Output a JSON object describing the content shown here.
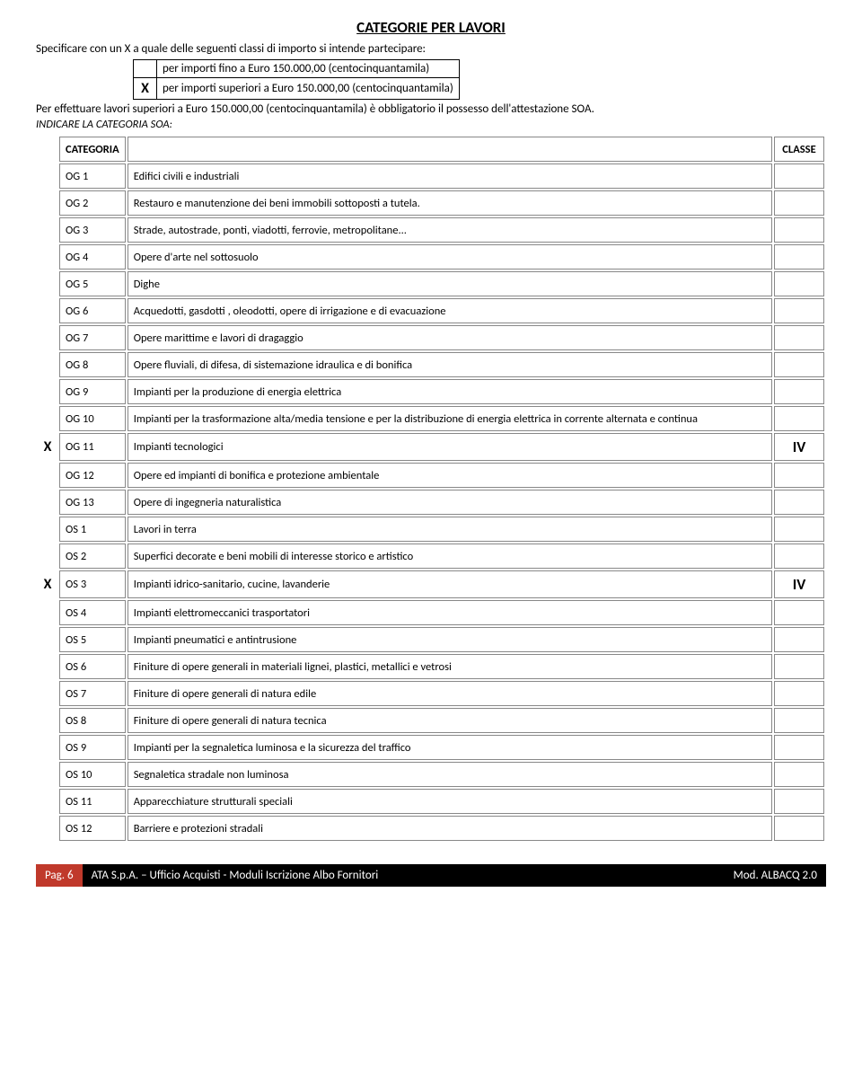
{
  "title": "CATEGORIE PER LAVORI",
  "intro": "Specificare con un X a quale delle seguenti classi di importo si intende partecipare:",
  "imports": [
    {
      "mark": "",
      "label": "per importi fino a Euro 150.000,00 (centocinquantamila)"
    },
    {
      "mark": "X",
      "label": "per importi superiori a Euro 150.000,00 (centocinquantamila)"
    }
  ],
  "post_import": "Per effettuare lavori superiori a Euro 150.000,00 (centocinquantamila) è obbligatorio il possesso dell'attestazione SOA.",
  "indicate": "INDICARE LA CATEGORIA SOA:",
  "header": {
    "categoria": "CATEGORIA",
    "classe": "CLASSE"
  },
  "rows": [
    {
      "mark": "",
      "code": "OG 1",
      "desc": "Edifici civili e industriali",
      "class": ""
    },
    {
      "mark": "",
      "code": "OG 2",
      "desc": "Restauro e manutenzione dei beni immobili sottoposti a tutela.",
      "class": ""
    },
    {
      "mark": "",
      "code": "OG 3",
      "desc": "Strade, autostrade, ponti, viadotti, ferrovie, metropolitane...",
      "class": ""
    },
    {
      "mark": "",
      "code": "OG 4",
      "desc": "Opere d'arte nel sottosuolo",
      "class": ""
    },
    {
      "mark": "",
      "code": "OG 5",
      "desc": "Dighe",
      "class": ""
    },
    {
      "mark": "",
      "code": "OG 6",
      "desc": "Acquedotti, gasdotti , oleodotti, opere di irrigazione e di evacuazione",
      "class": ""
    },
    {
      "mark": "",
      "code": "OG 7",
      "desc": "Opere marittime e lavori di dragaggio",
      "class": ""
    },
    {
      "mark": "",
      "code": "OG 8",
      "desc": "Opere fluviali, di difesa, di sistemazione idraulica e di bonifica",
      "class": ""
    },
    {
      "mark": "",
      "code": "OG 9",
      "desc": "Impianti per la produzione di energia elettrica",
      "class": ""
    },
    {
      "mark": "",
      "code": "OG 10",
      "desc": "Impianti per la trasformazione alta/media tensione e per la distribuzione di energia elettrica in corrente alternata e continua",
      "class": ""
    },
    {
      "mark": "X",
      "code": "OG 11",
      "desc": "Impianti tecnologici",
      "class": "IV"
    },
    {
      "mark": "",
      "code": "OG 12",
      "desc": "Opere ed impianti di bonifica e protezione ambientale",
      "class": ""
    },
    {
      "mark": "",
      "code": "OG 13",
      "desc": "Opere di ingegneria naturalistica",
      "class": ""
    },
    {
      "mark": "",
      "code": "OS 1",
      "desc": "Lavori in terra",
      "class": ""
    },
    {
      "mark": "",
      "code": "OS 2",
      "desc": "Superfici decorate e beni mobili di interesse storico e artistico",
      "class": ""
    },
    {
      "mark": "X",
      "code": "OS 3",
      "desc": "Impianti idrico-sanitario, cucine, lavanderie",
      "class": "IV"
    },
    {
      "mark": "",
      "code": "OS 4",
      "desc": "Impianti elettromeccanici trasportatori",
      "class": ""
    },
    {
      "mark": "",
      "code": "OS 5",
      "desc": "Impianti pneumatici e antintrusione",
      "class": ""
    },
    {
      "mark": "",
      "code": "OS 6",
      "desc": "Finiture di opere generali in materiali lignei, plastici, metallici e vetrosi",
      "class": ""
    },
    {
      "mark": "",
      "code": "OS 7",
      "desc": "Finiture di opere generali di natura edile",
      "class": ""
    },
    {
      "mark": "",
      "code": "OS 8",
      "desc": "Finiture di opere generali di natura tecnica",
      "class": ""
    },
    {
      "mark": "",
      "code": "OS 9",
      "desc": "Impianti per la segnaletica luminosa e la sicurezza del traffico",
      "class": ""
    },
    {
      "mark": "",
      "code": "OS 10",
      "desc": "Segnaletica stradale non luminosa",
      "class": ""
    },
    {
      "mark": "",
      "code": "OS 11",
      "desc": "Apparecchiature strutturali speciali",
      "class": ""
    },
    {
      "mark": "",
      "code": "OS 12",
      "desc": "Barriere e protezioni stradali",
      "class": ""
    }
  ],
  "footer": {
    "page": "Pag. 6",
    "left": "ATA S.p.A. – Ufficio Acquisti - Moduli Iscrizione Albo Fornitori",
    "right": "Mod. ALBACQ 2.0"
  },
  "colors": {
    "footer_red": "#c0392b",
    "footer_black": "#000000",
    "border": "#888888"
  }
}
